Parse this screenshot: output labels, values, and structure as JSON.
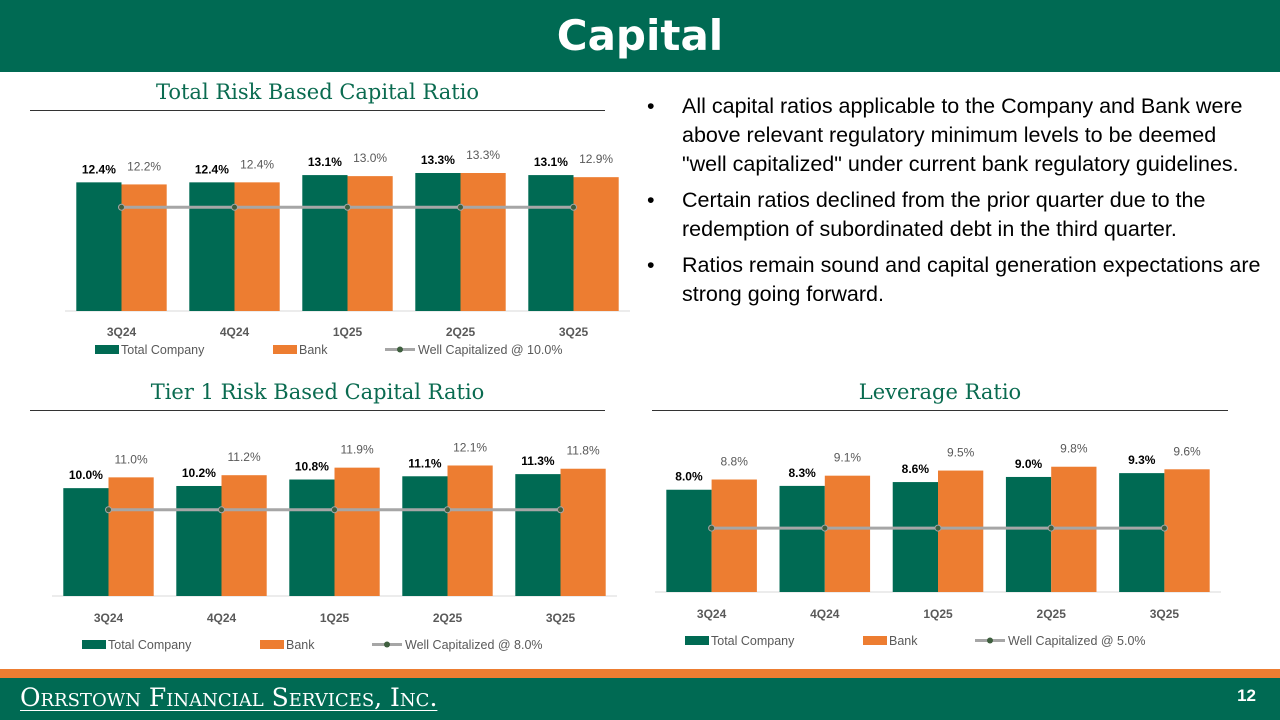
{
  "header": {
    "title": "Capital"
  },
  "bullets": [
    "All capital ratios applicable to the Company and Bank were above relevant regulatory minimum levels to be deemed \"well capitalized\" under current bank regulatory guidelines.",
    "Certain ratios declined from the prior quarter due to the redemption of subordinated debt in the third quarter.",
    "Ratios remain sound and capital generation expectations are strong going forward."
  ],
  "colors": {
    "brand_green": "#006a53",
    "series_green": "#006a53",
    "series_orange": "#ed7d31",
    "line_gray": "#a6a6a6"
  },
  "chart_data": [
    {
      "type": "bar",
      "title": "Total Risk Based Capital Ratio",
      "categories": [
        "3Q24",
        "4Q24",
        "1Q25",
        "2Q25",
        "3Q25"
      ],
      "series": [
        {
          "name": "Total Company",
          "values": [
            12.4,
            12.4,
            13.1,
            13.3,
            13.1
          ],
          "labels": [
            "12.4%",
            "12.4%",
            "13.1%",
            "13.3%",
            "13.1%"
          ]
        },
        {
          "name": "Bank",
          "values": [
            12.2,
            12.4,
            13.0,
            13.3,
            12.9
          ],
          "labels": [
            "12.2%",
            "12.4%",
            "13.0%",
            "13.3%",
            "12.9%"
          ]
        }
      ],
      "line": {
        "name": "Well Capitalized @ 10.0%",
        "value": 10.0
      },
      "ylim": [
        0,
        16
      ],
      "legend": "bottom"
    },
    {
      "type": "bar",
      "title": "Tier 1 Risk Based Capital Ratio",
      "categories": [
        "3Q24",
        "4Q24",
        "1Q25",
        "2Q25",
        "3Q25"
      ],
      "series": [
        {
          "name": "Total Company",
          "values": [
            10.0,
            10.2,
            10.8,
            11.1,
            11.3
          ],
          "labels": [
            "10.0%",
            "10.2%",
            "10.8%",
            "11.1%",
            "11.3%"
          ]
        },
        {
          "name": "Bank",
          "values": [
            11.0,
            11.2,
            11.9,
            12.1,
            11.8
          ],
          "labels": [
            "11.0%",
            "11.2%",
            "11.9%",
            "12.1%",
            "11.8%"
          ]
        }
      ],
      "line": {
        "name": "Well Capitalized @ 8.0%",
        "value": 8.0
      },
      "ylim": [
        0,
        14
      ],
      "legend": "bottom"
    },
    {
      "type": "bar",
      "title": "Leverage Ratio",
      "categories": [
        "3Q24",
        "4Q24",
        "1Q25",
        "2Q25",
        "3Q25"
      ],
      "series": [
        {
          "name": "Total Company",
          "values": [
            8.0,
            8.3,
            8.6,
            9.0,
            9.3
          ],
          "labels": [
            "8.0%",
            "8.3%",
            "8.6%",
            "9.0%",
            "9.3%"
          ]
        },
        {
          "name": "Bank",
          "values": [
            8.8,
            9.1,
            9.5,
            9.8,
            9.6
          ],
          "labels": [
            "8.8%",
            "9.1%",
            "9.5%",
            "9.8%",
            "9.6%"
          ]
        }
      ],
      "line": {
        "name": "Well Capitalized @ 5.0%",
        "value": 5.0
      },
      "ylim": [
        0,
        11.5
      ],
      "legend": "bottom"
    }
  ],
  "footer": {
    "company": "Orrstown Financial Services, Inc.",
    "page": "12"
  }
}
